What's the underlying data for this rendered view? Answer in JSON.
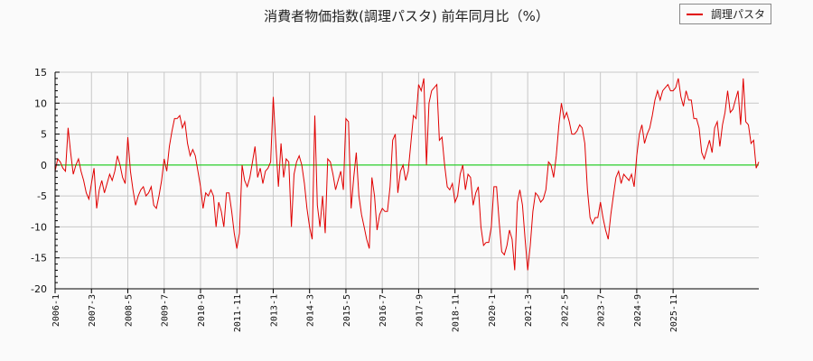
{
  "chart_data": {
    "type": "line",
    "title": "消費者物価指数(調理パスタ) 前年同月比（%）",
    "xlabel": "",
    "ylabel": "",
    "ylim": [
      -20,
      15
    ],
    "yticks": [
      15,
      10,
      5,
      0,
      -5,
      -10,
      -15,
      -20
    ],
    "xticks": [
      "2006-1",
      "2007-3",
      "2008-5",
      "2009-7",
      "2010-9",
      "2011-11",
      "2013-1",
      "2014-3",
      "2015-5",
      "2016-7",
      "2017-9",
      "2018-11",
      "2020-1",
      "2021-3",
      "2022-5",
      "2023-7",
      "2024-9",
      "2025-11"
    ],
    "grid": true,
    "legend_position": "top-right",
    "reference_line": {
      "y": 0,
      "color": "#00cc00"
    },
    "x_start": "2006-1",
    "x_step": "month",
    "series": [
      {
        "name": "調理パスタ",
        "color": "#e00000",
        "values": [
          -1.0,
          1.0,
          0.5,
          -0.5,
          -1.0,
          6.0,
          2.0,
          -1.5,
          0.0,
          1.0,
          -1.0,
          -2.5,
          -4.5,
          -5.5,
          -3.0,
          -0.5,
          -7.0,
          -4.0,
          -2.5,
          -4.5,
          -3.0,
          -1.5,
          -2.5,
          -1.0,
          1.5,
          0.0,
          -2.0,
          -3.0,
          4.5,
          -1.0,
          -4.0,
          -6.5,
          -5.0,
          -4.0,
          -3.5,
          -5.0,
          -4.5,
          -3.5,
          -6.5,
          -7.0,
          -5.0,
          -2.5,
          1.0,
          -1.0,
          3.0,
          5.5,
          7.5,
          7.5,
          8.0,
          6.0,
          7.0,
          3.5,
          1.5,
          2.5,
          1.5,
          -1.0,
          -3.5,
          -7.0,
          -4.5,
          -5.0,
          -4.0,
          -5.0,
          -10.0,
          -6.0,
          -7.5,
          -10.0,
          -4.5,
          -4.5,
          -7.5,
          -11.0,
          -13.5,
          -11.0,
          0.0,
          -2.5,
          -3.5,
          -2.0,
          0.5,
          3.0,
          -2.0,
          -0.5,
          -3.0,
          -1.0,
          -0.5,
          0.5,
          11.0,
          3.5,
          -3.5,
          3.5,
          -2.0,
          1.0,
          0.5,
          -10.0,
          -1.5,
          0.5,
          1.5,
          0.0,
          -3.0,
          -7.0,
          -10.0,
          -12.0,
          8.0,
          -6.5,
          -10.0,
          -5.0,
          -11.0,
          1.0,
          0.5,
          -1.5,
          -4.0,
          -2.5,
          -1.0,
          -4.0,
          7.5,
          7.0,
          -7.0,
          -2.0,
          2.0,
          -5.0,
          -8.0,
          -10.0,
          -12.0,
          -13.5,
          -2.0,
          -5.0,
          -10.5,
          -8.0,
          -7.0,
          -7.5,
          -7.5,
          -3.5,
          4.0,
          5.0,
          -4.5,
          -1.0,
          0.0,
          -2.5,
          -1.0,
          3.5,
          8.0,
          7.5,
          13.0,
          12.0,
          14.0,
          0.0,
          10.0,
          12.0,
          12.5,
          13.0,
          4.0,
          4.5,
          0.0,
          -3.5,
          -4.0,
          -3.0,
          -6.0,
          -5.0,
          -1.5,
          0.0,
          -4.0,
          -1.5,
          -2.0,
          -6.5,
          -4.5,
          -3.5,
          -10.0,
          -13.0,
          -12.5,
          -12.5,
          -10.0,
          -3.5,
          -3.5,
          -9.0,
          -14.0,
          -14.5,
          -13.0,
          -10.5,
          -12.0,
          -17.0,
          -6.0,
          -4.0,
          -6.5,
          -12.0,
          -17.0,
          -13.0,
          -7.5,
          -4.5,
          -5.0,
          -6.0,
          -5.5,
          -4.0,
          0.5,
          0.0,
          -2.0,
          1.5,
          6.5,
          10.0,
          7.5,
          8.5,
          7.0,
          5.0,
          5.0,
          5.5,
          6.5,
          6.0,
          3.5,
          -4.0,
          -8.5,
          -9.5,
          -8.5,
          -8.5,
          -6.0,
          -8.5,
          -10.5,
          -12.0,
          -8.0,
          -5.0,
          -2.0,
          -1.0,
          -3.0,
          -1.5,
          -2.0,
          -2.5,
          -1.5,
          -3.5,
          1.5,
          5.0,
          6.5,
          3.5,
          5.0,
          6.0,
          8.0,
          10.5,
          12.0,
          10.5,
          12.0,
          12.5,
          13.0,
          12.0,
          12.0,
          12.5,
          14.0,
          11.0,
          9.5,
          12.0,
          10.5,
          10.5,
          7.5,
          7.5,
          6.0,
          2.0,
          1.0,
          2.5,
          4.0,
          2.0,
          6.0,
          7.0,
          3.0,
          6.5,
          8.5,
          12.0,
          8.5,
          9.0,
          10.5,
          12.0,
          6.5,
          14.0,
          7.0,
          6.5,
          3.5,
          4.0,
          -0.5,
          0.5
        ]
      }
    ]
  },
  "legend": {
    "items": [
      {
        "label": "調理パスタ",
        "color": "#e00000"
      }
    ]
  }
}
